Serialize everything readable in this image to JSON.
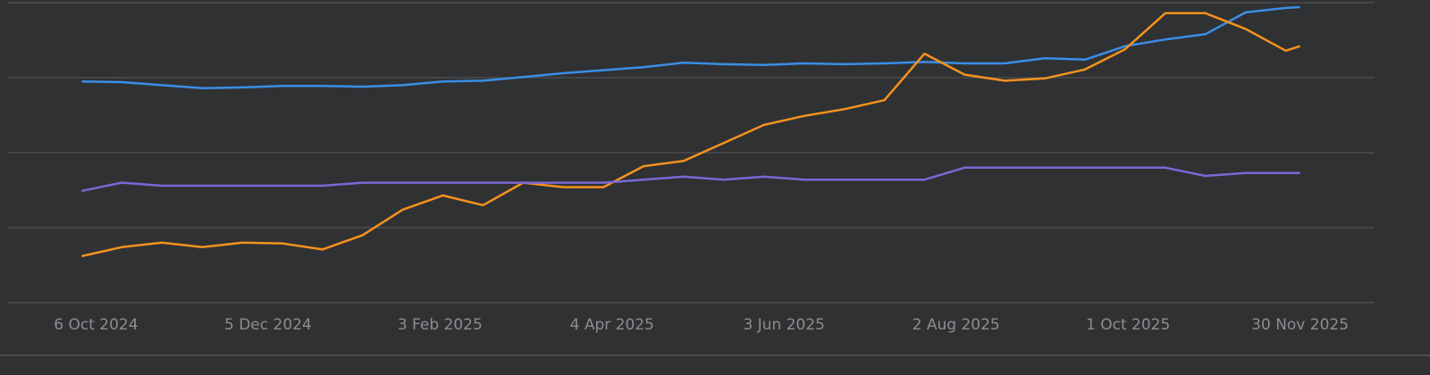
{
  "chart_data": {
    "type": "line",
    "x": [
      "2024-10-01",
      "2024-10-15",
      "2024-10-29",
      "2024-11-12",
      "2024-11-26",
      "2024-12-10",
      "2024-12-24",
      "2025-01-07",
      "2025-01-21",
      "2025-02-04",
      "2025-02-18",
      "2025-03-04",
      "2025-03-18",
      "2025-04-01",
      "2025-04-15",
      "2025-04-29",
      "2025-05-13",
      "2025-05-27",
      "2025-06-10",
      "2025-06-24",
      "2025-07-08",
      "2025-07-22",
      "2025-08-05",
      "2025-08-19",
      "2025-09-02",
      "2025-09-16",
      "2025-09-30",
      "2025-10-14",
      "2025-10-28",
      "2025-11-11",
      "2025-11-25",
      "2025-11-30"
    ],
    "series": [
      {
        "color": "#3a8ee6",
        "values": [
          2.95,
          2.94,
          2.9,
          2.86,
          2.87,
          2.89,
          2.89,
          2.88,
          2.9,
          2.95,
          2.96,
          3.01,
          3.06,
          3.1,
          3.14,
          3.2,
          3.18,
          3.17,
          3.19,
          3.18,
          3.19,
          3.21,
          3.19,
          3.19,
          3.26,
          3.24,
          3.42,
          3.51,
          3.58,
          3.87,
          3.93,
          3.94
        ]
      },
      {
        "color": "#f5921e",
        "values": [
          0.62,
          0.74,
          0.8,
          0.74,
          0.8,
          0.79,
          0.71,
          0.9,
          1.24,
          1.43,
          1.3,
          1.6,
          1.54,
          1.54,
          1.82,
          1.89,
          2.13,
          2.37,
          2.49,
          2.58,
          2.7,
          3.32,
          3.04,
          2.96,
          2.99,
          3.11,
          3.38,
          3.86,
          3.86,
          3.65,
          3.36,
          3.42
        ]
      },
      {
        "color": "#7b68d6",
        "values": [
          1.49,
          1.6,
          1.56,
          1.56,
          1.56,
          1.56,
          1.56,
          1.6,
          1.6,
          1.6,
          1.6,
          1.6,
          1.6,
          1.6,
          1.64,
          1.68,
          1.64,
          1.68,
          1.64,
          1.64,
          1.64,
          1.64,
          1.8,
          1.8,
          1.8,
          1.8,
          1.8,
          1.8,
          1.69,
          1.73,
          1.73,
          1.73
        ]
      }
    ],
    "xlim": [
      "2024-09-05",
      "2025-12-26"
    ],
    "xticks": [
      {
        "value": "2024-10-06",
        "label": "6 Oct 2024"
      },
      {
        "value": "2024-12-05",
        "label": "5 Dec 2024"
      },
      {
        "value": "2025-02-03",
        "label": "3 Feb 2025"
      },
      {
        "value": "2025-04-04",
        "label": "4 Apr 2025"
      },
      {
        "value": "2025-06-03",
        "label": "3 Jun 2025"
      },
      {
        "value": "2025-08-02",
        "label": "2 Aug 2025"
      },
      {
        "value": "2025-10-01",
        "label": "1 Oct 2025"
      },
      {
        "value": "2025-11-30",
        "label": "30 Nov 2025"
      }
    ],
    "ylim": [
      0,
      4
    ],
    "yticks": [
      0,
      1,
      2,
      3,
      4
    ],
    "grid": true
  }
}
